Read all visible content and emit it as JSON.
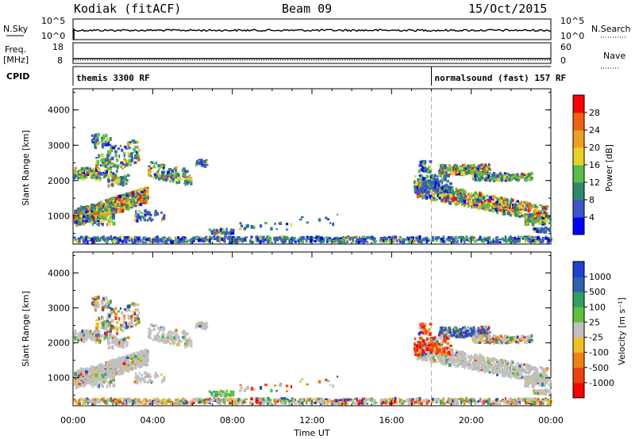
{
  "header": {
    "radar": "Kodiak (fitACF)",
    "beam": "Beam 09",
    "date": "15/Oct/2015"
  },
  "strip_labels": {
    "nsky": "N.Sky",
    "nsky_ticks": [
      "10^5",
      "10^0"
    ],
    "nsearch": "N.Search",
    "nsearch_ticks": [
      "10^5",
      "10^0"
    ],
    "freq_top": "Freq.",
    "freq_unit": "[MHz]",
    "freq_ticks": [
      "18",
      "8"
    ],
    "nave": "Nave",
    "nave_ticks": [
      "60",
      "0"
    ],
    "cpid": "CPID"
  },
  "cpid_segments": [
    {
      "label": "themis 3300 RF",
      "start_h": 0,
      "end_h": 18
    },
    {
      "label": "normalsound (fast) 157 RF",
      "start_h": 18,
      "end_h": 24
    }
  ],
  "chart_data": [
    {
      "type": "heatmap",
      "name": "Power",
      "ylabel": "Slant Range [km]",
      "xlabel": "",
      "ylim": [
        200,
        4600
      ],
      "yticks": [
        "1000",
        "2000",
        "3000",
        "4000"
      ],
      "colorbar_label": "Power [dB]",
      "colorbar_ticks": [
        "4",
        "8",
        "12",
        "16",
        "20",
        "24",
        "28"
      ],
      "colorbar_colors": [
        "#0000ff",
        "#3a56c8",
        "#2d8a6a",
        "#58c048",
        "#e8d420",
        "#f0a020",
        "#f06010",
        "#ff0000"
      ],
      "scatter_regions": [
        {
          "t0": 0.0,
          "t1": 6.9,
          "r0": 700,
          "r1": 1700,
          "desc": "band"
        },
        {
          "t0": 0.0,
          "t1": 3.5,
          "r0": 2000,
          "r1": 3500
        },
        {
          "t0": 17.2,
          "t1": 24.0,
          "r0": 800,
          "r1": 2600
        },
        {
          "t0": 0.0,
          "t1": 24.0,
          "r0": 200,
          "r1": 450
        }
      ]
    },
    {
      "type": "heatmap",
      "name": "Velocity",
      "ylabel": "Slant Range [km]",
      "xlabel": "Time UT",
      "ylim": [
        200,
        4600
      ],
      "yticks": [
        "1000",
        "2000",
        "3000",
        "4000"
      ],
      "xticks": [
        "00:00",
        "04:00",
        "08:00",
        "12:00",
        "16:00",
        "20:00",
        "00:00"
      ],
      "xrange_hours": [
        0,
        24
      ],
      "colorbar_label": "Velocity [m s⁻¹]",
      "colorbar_ticks": [
        "1000",
        "500",
        "100",
        "25",
        "-25",
        "-100",
        "-500",
        "-1000"
      ],
      "colorbar_colors": [
        "#2040d0",
        "#3060b8",
        "#30a060",
        "#60c040",
        "#c0c0c0",
        "#f0c020",
        "#f08010",
        "#f04010",
        "#ff0000"
      ]
    }
  ],
  "colors": {
    "axis": "#000000",
    "grey_scatter": "#c0c0c0",
    "dashed_marker": "#b0b0b0"
  }
}
